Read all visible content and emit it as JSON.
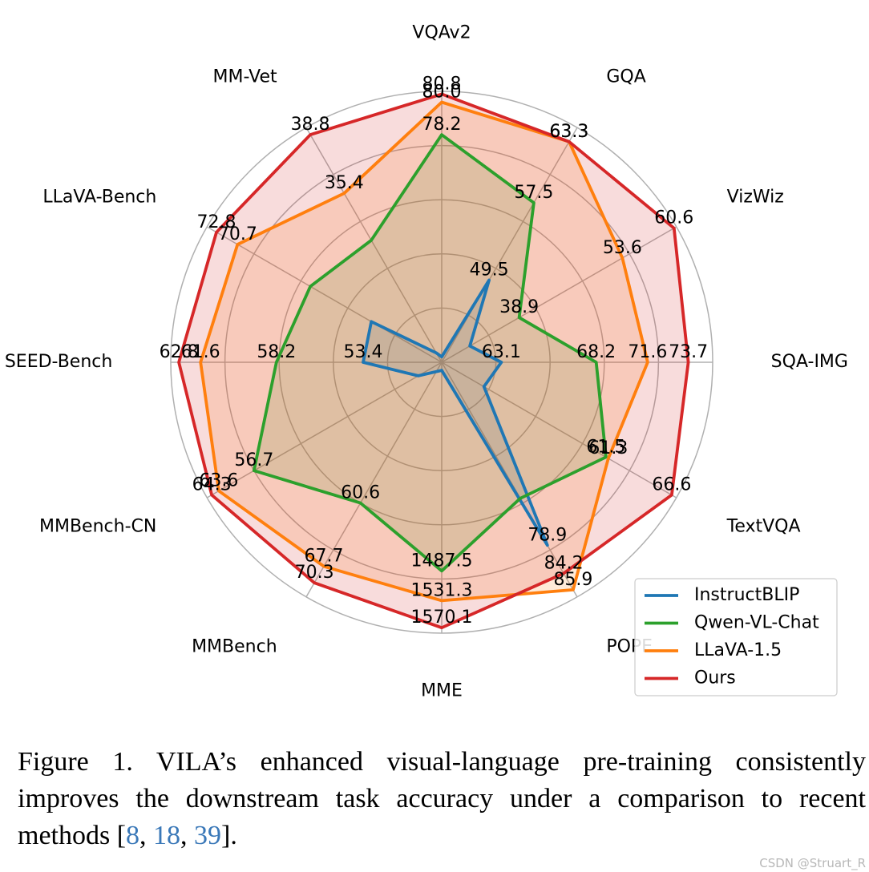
{
  "chart_data": {
    "type": "radar",
    "axes": [
      "VQAv2",
      "GQA",
      "VizWiz",
      "SQA-IMG",
      "TextVQA",
      "POPE",
      "MME",
      "MMBench",
      "MMBench-CN",
      "SEED-Bench",
      "LLaVA-Bench",
      "MM-Vet"
    ],
    "series": [
      {
        "name": "InstructBLIP",
        "color": "#1f77b4",
        "fill": true,
        "values": [
          null,
          49.5,
          null,
          63.1,
          null,
          78.9,
          null,
          null,
          null,
          53.4,
          null,
          null
        ],
        "labels": [
          "",
          "49.5",
          "",
          "63.1",
          "",
          "78.9",
          "",
          "",
          "",
          "53.4",
          "",
          ""
        ],
        "radius": [
          0.02,
          0.35,
          0.12,
          0.22,
          0.18,
          0.78,
          0.03,
          0.04,
          0.1,
          0.29,
          0.3,
          0.04
        ]
      },
      {
        "name": "Qwen-VL-Chat",
        "color": "#2ca02c",
        "fill": true,
        "values": [
          78.2,
          57.5,
          38.9,
          68.2,
          61.5,
          null,
          1487.5,
          60.6,
          56.7,
          58.2,
          null,
          null
        ],
        "labels": [
          "78.2",
          "57.5",
          "38.9",
          "68.2",
          "61.5",
          "",
          "1487.5",
          "60.6",
          "56.7",
          "58.2",
          "",
          ""
        ],
        "radius": [
          0.84,
          0.68,
          0.33,
          0.57,
          0.7,
          0.58,
          0.77,
          0.6,
          0.8,
          0.61,
          0.56,
          0.52
        ]
      },
      {
        "name": "LLaVA-1.5",
        "color": "#ff7f0e",
        "fill": true,
        "values": [
          80.0,
          63.3,
          53.6,
          71.6,
          61.3,
          85.9,
          1531.3,
          67.7,
          63.6,
          61.6,
          70.7,
          35.4
        ],
        "labels": [
          "80.0",
          "63.3",
          "53.6",
          "71.6",
          "61.3",
          "85.9",
          "1531.3",
          "67.7",
          "63.6",
          "61.6",
          "70.7",
          "35.4"
        ],
        "radius": [
          0.96,
          0.94,
          0.77,
          0.76,
          0.71,
          0.97,
          0.88,
          0.87,
          0.95,
          0.89,
          0.87,
          0.72
        ]
      },
      {
        "name": "Ours",
        "color": "#d62728",
        "fill": true,
        "values": [
          80.8,
          63.3,
          60.6,
          73.7,
          66.6,
          84.2,
          1570.1,
          70.3,
          64.3,
          62.8,
          72.8,
          38.8
        ],
        "labels": [
          "80.8",
          "63.3",
          "60.6",
          "73.7",
          "66.6",
          "84.2",
          "1570.1",
          "70.3",
          "64.3",
          "62.8",
          "72.8",
          "38.8"
        ],
        "radius": [
          0.99,
          0.94,
          0.99,
          0.91,
          0.98,
          0.9,
          0.98,
          0.94,
          0.98,
          0.97,
          0.96,
          0.97
        ]
      }
    ],
    "grid": true,
    "legend": "bottom-right"
  },
  "caption": {
    "prefix": "Figure 1.  VILA’s enhanced visual-language pre-training consistently improves the downstream task accuracy under a comparison to recent methods [",
    "ref1": "8",
    "sep1": ", ",
    "ref2": "18",
    "sep2": ", ",
    "ref3": "39",
    "suffix": "]."
  },
  "watermark": "CSDN @Struart_R"
}
